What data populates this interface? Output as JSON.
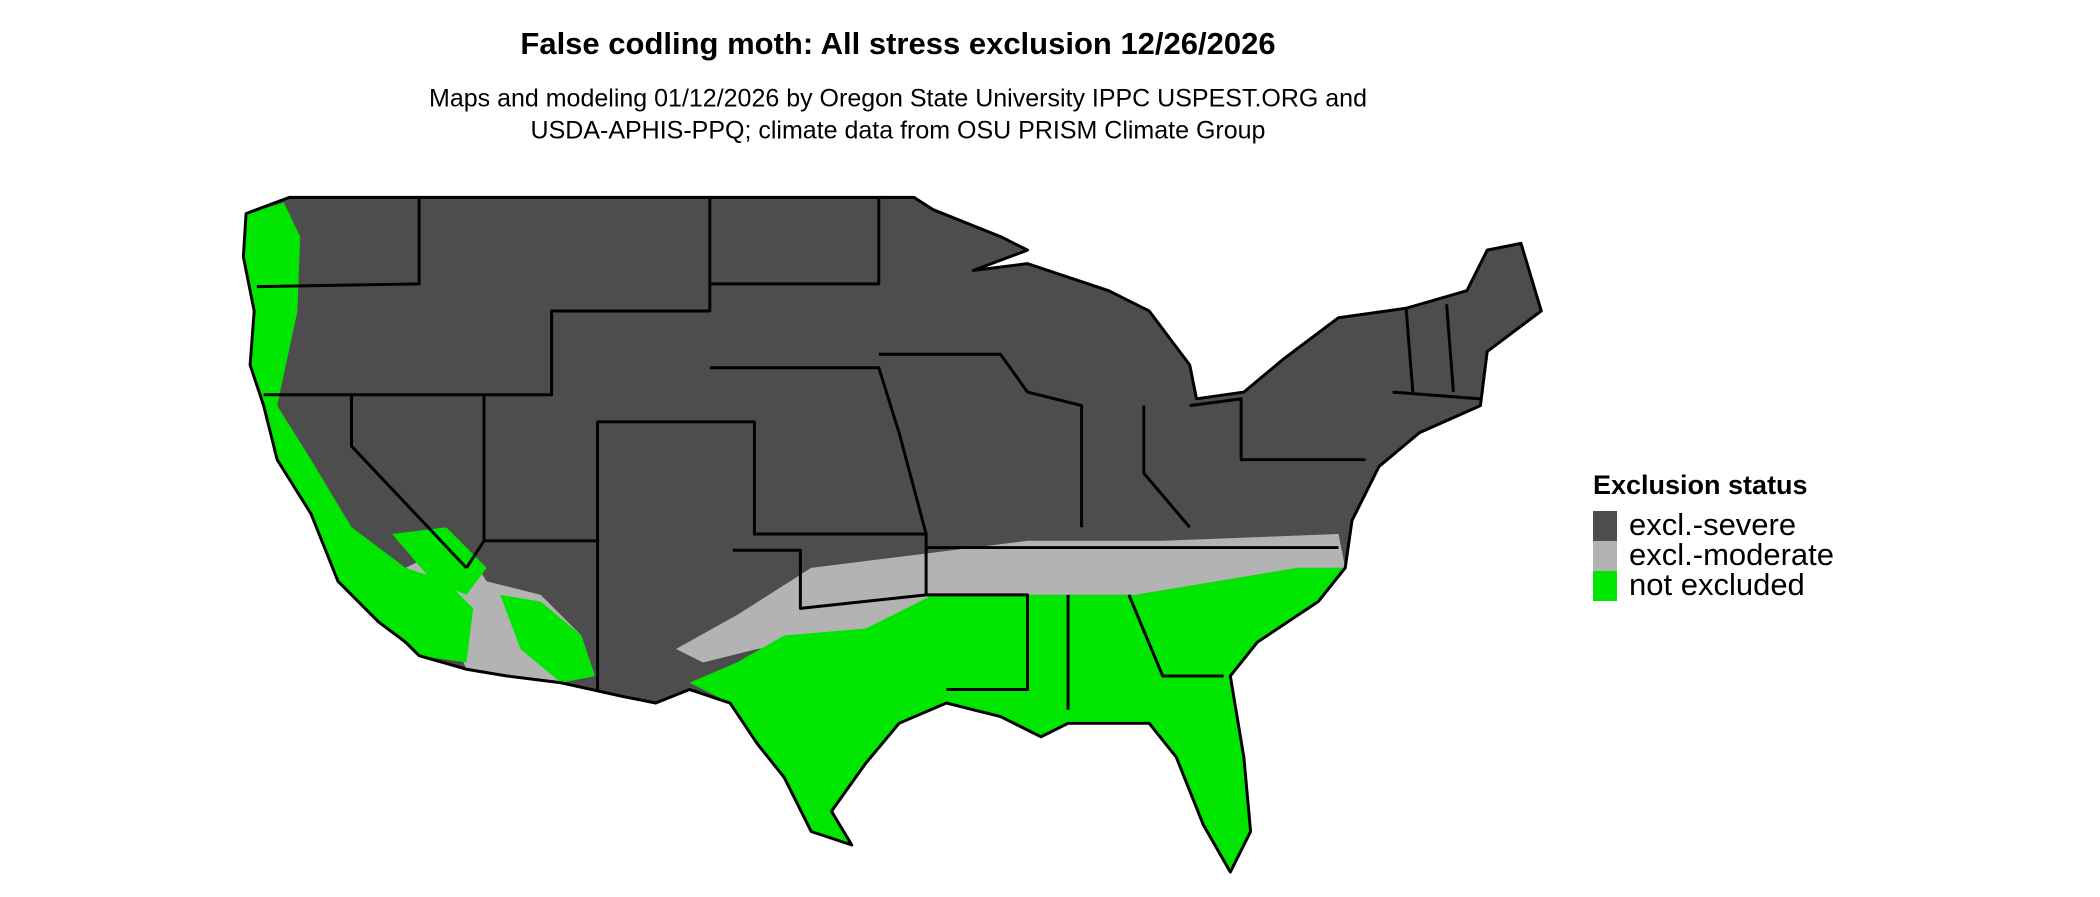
{
  "title": "False codling moth: All stress exclusion 12/26/2026",
  "subtitle": [
    "Maps and modeling 01/12/2026 by Oregon State University IPPC USPEST.ORG and",
    "USDA-APHIS-PPQ; climate data from OSU PRISM Climate Group"
  ],
  "legend": {
    "title": "Exclusion status",
    "items": [
      {
        "label": "excl.-severe",
        "color": "#4d4d4d"
      },
      {
        "label": "excl.-moderate",
        "color": "#b3b3b3"
      },
      {
        "label": "not excluded",
        "color": "#00e600"
      }
    ]
  }
}
